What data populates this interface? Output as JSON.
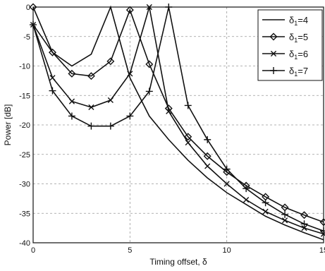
{
  "chart_data": {
    "type": "line",
    "title": "",
    "xlabel": "Timing offset, δ",
    "ylabel": "Power [dB]",
    "xlim": [
      0,
      15
    ],
    "ylim": [
      -40,
      0
    ],
    "xticks": [
      "0",
      "5",
      "10",
      "15"
    ],
    "yticks": [
      "0",
      "-5",
      "-10",
      "-15",
      "-20",
      "-25",
      "-30",
      "-35",
      "-40"
    ],
    "grid": true,
    "legend_position": "top-right",
    "series": [
      {
        "name": "δ1=4",
        "legend_main": "δ",
        "legend_sub": "1",
        "legend_rest": "=4",
        "marker": "none",
        "x": [
          0,
          1,
          2,
          3,
          4,
          5,
          6,
          7,
          8,
          9,
          10,
          11,
          12,
          13,
          14,
          15
        ],
        "y": [
          -3,
          -7.7,
          -10,
          -8,
          0,
          -12,
          -18.5,
          -22.5,
          -26,
          -29,
          -31.5,
          -33.5,
          -35.5,
          -37,
          -38.3,
          -39.5
        ]
      },
      {
        "name": "δ1=5",
        "legend_main": "δ",
        "legend_sub": "1",
        "legend_rest": "=5",
        "marker": "diamond",
        "x": [
          0,
          1,
          2,
          3,
          4,
          5,
          6,
          7,
          8,
          9,
          10,
          11,
          12,
          13,
          14,
          15
        ],
        "y": [
          0,
          -7.7,
          -11.3,
          -11.7,
          -9.2,
          -0.5,
          -9.7,
          -17.2,
          -22,
          -25.3,
          -28,
          -30.3,
          -32.2,
          -34,
          -35.3,
          -36.5
        ]
      },
      {
        "name": "δ1=6",
        "legend_main": "δ",
        "legend_sub": "1",
        "legend_rest": "=6",
        "marker": "x",
        "x": [
          0,
          1,
          2,
          3,
          4,
          5,
          6,
          7,
          8,
          9,
          10,
          11,
          12,
          13,
          14,
          15
        ],
        "y": [
          -3,
          -12,
          -16,
          -17,
          -15.8,
          -11.3,
          0,
          -17.7,
          -23,
          -27,
          -30,
          -32.7,
          -34.7,
          -36.2,
          -37.5,
          -38.5
        ]
      },
      {
        "name": "δ1=7",
        "legend_main": "δ",
        "legend_sub": "1",
        "legend_rest": "=7",
        "marker": "plus",
        "x": [
          0,
          1,
          2,
          3,
          4,
          5,
          6,
          7,
          8,
          9,
          10,
          11,
          12,
          13,
          14,
          15
        ],
        "y": [
          -3,
          -14.2,
          -18.5,
          -20.2,
          -20.2,
          -18.5,
          -14.3,
          0,
          -16.7,
          -22.5,
          -27.5,
          -30.8,
          -33.2,
          -35.2,
          -36.8,
          -38
        ]
      }
    ]
  }
}
